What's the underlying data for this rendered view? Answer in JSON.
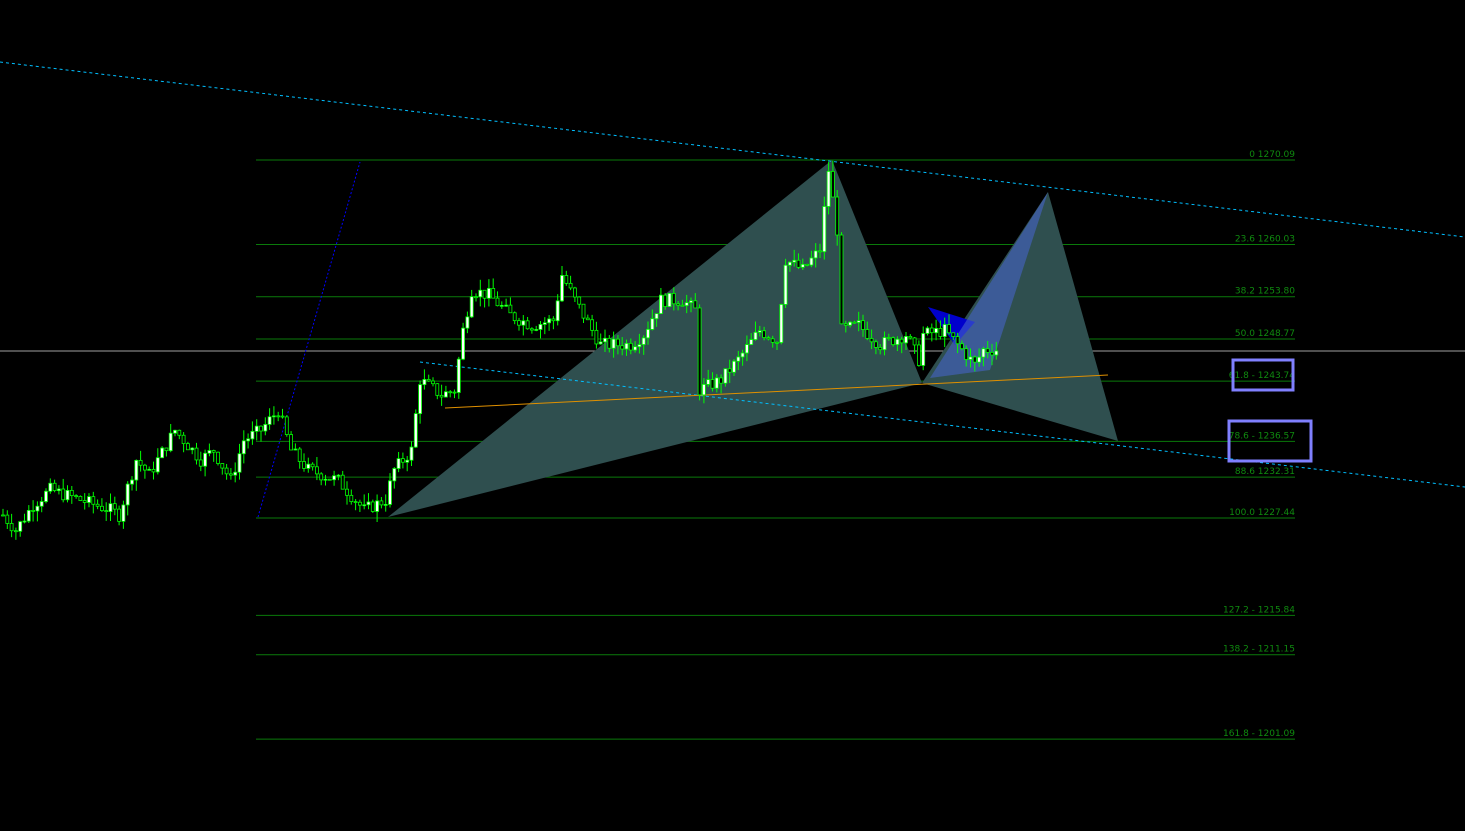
{
  "chart_data": {
    "type": "candlestick",
    "ylim": [
      1195,
      1277
    ],
    "grid": false,
    "colors": {
      "background": "#000000",
      "wick": "#00ff00",
      "bull_body": "#ffffff",
      "bear_body": "#000000",
      "fib_line": "#0a7a0a",
      "fib_text": "#0f8a0f",
      "channel": "#00bfff",
      "pattern_fill": "#2f4f4f",
      "pattern_blue": "#0000cc",
      "orange_line": "#e09000",
      "box": "#8080ff",
      "price_line": "#a0a0a0"
    },
    "approx_close_path": [
      [
        0,
        1227.8
      ],
      [
        3,
        1226.0
      ],
      [
        7,
        1229.0
      ],
      [
        11,
        1230.8
      ],
      [
        18,
        1229.6
      ],
      [
        25,
        1228.4
      ],
      [
        27,
        1227.8
      ],
      [
        31,
        1234.4
      ],
      [
        34,
        1232.6
      ],
      [
        40,
        1237.9
      ],
      [
        46,
        1234.4
      ],
      [
        49,
        1235.5
      ],
      [
        53,
        1231.9
      ],
      [
        56,
        1236.7
      ],
      [
        60,
        1237.9
      ],
      [
        64,
        1240.3
      ],
      [
        67,
        1235.5
      ],
      [
        71,
        1233.2
      ],
      [
        78,
        1231.9
      ],
      [
        84,
        1228.4
      ],
      [
        89,
        1229.6
      ],
      [
        91,
        1233.2
      ],
      [
        95,
        1235.5
      ],
      [
        97,
        1243.9
      ],
      [
        102,
        1242.1
      ],
      [
        105,
        1242.7
      ],
      [
        107,
        1249.8
      ],
      [
        109,
        1254.6
      ],
      [
        113,
        1254.0
      ],
      [
        118,
        1251.6
      ],
      [
        123,
        1250.4
      ],
      [
        128,
        1251.0
      ],
      [
        130,
        1256.4
      ],
      [
        133,
        1253.4
      ],
      [
        137,
        1249.8
      ],
      [
        139,
        1248.1
      ],
      [
        146,
        1248.1
      ],
      [
        149,
        1249.3
      ],
      [
        153,
        1253.4
      ],
      [
        158,
        1253.4
      ],
      [
        161,
        1252.2
      ],
      [
        162,
        1242.7
      ],
      [
        167,
        1243.9
      ],
      [
        171,
        1246.3
      ],
      [
        176,
        1249.8
      ],
      [
        180,
        1248.6
      ],
      [
        182,
        1258.2
      ],
      [
        186,
        1257.0
      ],
      [
        190,
        1259.4
      ],
      [
        192,
        1268.9
      ],
      [
        194,
        1261.8
      ],
      [
        195,
        1249.8
      ],
      [
        199,
        1250.4
      ],
      [
        204,
        1248.1
      ],
      [
        210,
        1249.3
      ],
      [
        213,
        1246.3
      ],
      [
        214,
        1249.3
      ],
      [
        219,
        1249.8
      ],
      [
        223,
        1247.5
      ],
      [
        226,
        1245.7
      ],
      [
        228,
        1247.5
      ],
      [
        231,
        1247.5
      ]
    ],
    "current_price": 1248.2,
    "fibonacci": [
      {
        "level": "0",
        "price": 1270.09,
        "label": "0 1270.09"
      },
      {
        "level": "23.6",
        "price": 1260.03,
        "label": "23.6 1260.03"
      },
      {
        "level": "38.2",
        "price": 1253.8,
        "label": "38.2 1253.80"
      },
      {
        "level": "50.0",
        "price": 1248.77,
        "label": "50.0 1248.77"
      },
      {
        "level": "61.8",
        "price": 1243.74,
        "label": "61.8 - 1243.74"
      },
      {
        "level": "78.6",
        "price": 1236.57,
        "label": "78.6 - 1236.57"
      },
      {
        "level": "88.6",
        "price": 1232.31,
        "label": "88.6 1232.31"
      },
      {
        "level": "100.0",
        "price": 1227.44,
        "label": "100.0 1227.44"
      },
      {
        "level": "127.2",
        "price": 1215.84,
        "label": "127.2 - 1215.84"
      },
      {
        "level": "138.2",
        "price": 1211.15,
        "label": "138.2 - 1211.15"
      },
      {
        "level": "161.8",
        "price": 1201.09,
        "label": "161.8 -  1201.09"
      }
    ],
    "highlighted_levels": [
      "61.8",
      "78.6"
    ]
  }
}
